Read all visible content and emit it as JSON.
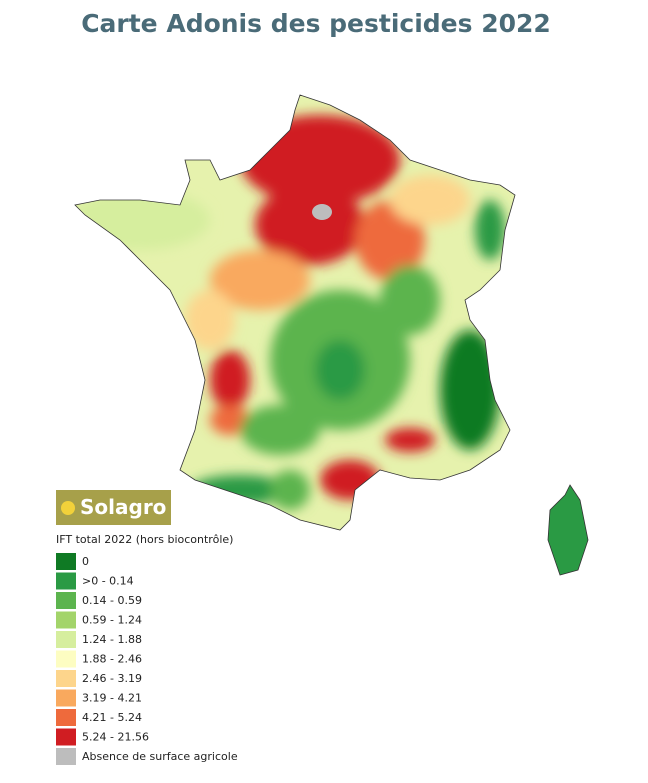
{
  "header": {
    "title": "Carte Adonis des pesticides 2022"
  },
  "logo": {
    "text": "Solagro"
  },
  "legend": {
    "title": "IFT total 2022 (hors biocontrôle)",
    "items": [
      {
        "label": "0",
        "color": "#0f7a24"
      },
      {
        "label": ">0 - 0.14",
        "color": "#2a9a44"
      },
      {
        "label": "0.14 - 0.59",
        "color": "#5cb44e"
      },
      {
        "label": "0.59 - 1.24",
        "color": "#a3d46a"
      },
      {
        "label": "1.24 - 1.88",
        "color": "#d6ee9e"
      },
      {
        "label": "1.88 - 2.46",
        "color": "#fdfdc2"
      },
      {
        "label": "2.46 - 3.19",
        "color": "#fdd58c"
      },
      {
        "label": "3.19 - 4.21",
        "color": "#f9a95e"
      },
      {
        "label": "4.21 - 5.24",
        "color": "#ee6a3c"
      },
      {
        "label": "5.24 - 21.56",
        "color": "#d01d22"
      },
      {
        "label": "Absence de surface agricole",
        "color": "#bdbdbd"
      }
    ]
  }
}
